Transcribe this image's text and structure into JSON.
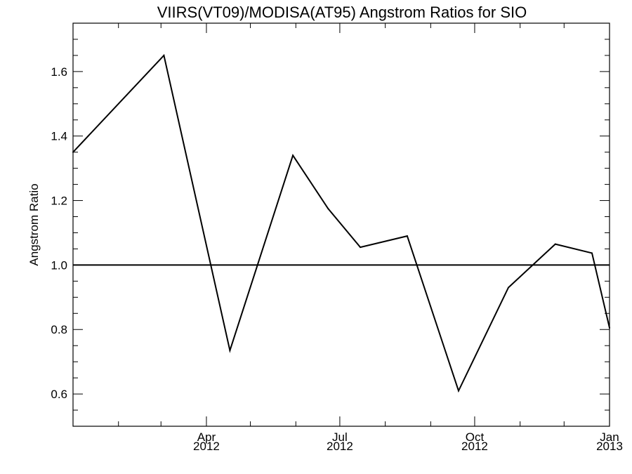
{
  "chart_data": {
    "type": "line",
    "title": "VIIRS(VT09)/MODISA(AT95)  Angstrom Ratios for SIO",
    "xlabel": "",
    "ylabel": "Angstrom Ratio",
    "ylim": [
      0.5,
      1.75
    ],
    "xlim": [
      "2012-01-01",
      "2013-01-01"
    ],
    "yticks": [
      {
        "value": 0.6,
        "label": "0.6"
      },
      {
        "value": 0.8,
        "label": "0.8"
      },
      {
        "value": 1.0,
        "label": "1.0"
      },
      {
        "value": 1.2,
        "label": "1.2"
      },
      {
        "value": 1.4,
        "label": "1.4"
      },
      {
        "value": 1.6,
        "label": "1.6"
      }
    ],
    "xticks": [
      {
        "date": "2012-04-01",
        "month": "Apr",
        "year": "2012"
      },
      {
        "date": "2012-07-01",
        "month": "Jul",
        "year": "2012"
      },
      {
        "date": "2012-10-01",
        "month": "Oct",
        "year": "2012"
      },
      {
        "date": "2013-01-01",
        "month": "Jan",
        "year": "2013"
      }
    ],
    "series": [
      {
        "points": [
          {
            "date": "2012-01-01",
            "value": 1.35
          },
          {
            "date": "2012-03-03",
            "value": 1.65
          },
          {
            "date": "2012-04-17",
            "value": 0.735
          },
          {
            "date": "2012-05-30",
            "value": 1.34
          },
          {
            "date": "2012-06-23",
            "value": 1.175
          },
          {
            "date": "2012-07-15",
            "value": 1.055
          },
          {
            "date": "2012-08-16",
            "value": 1.09
          },
          {
            "date": "2012-09-20",
            "value": 0.61
          },
          {
            "date": "2012-10-24",
            "value": 0.93
          },
          {
            "date": "2012-11-25",
            "value": 1.065
          },
          {
            "date": "2012-12-20",
            "value": 1.037
          },
          {
            "date": "2013-01-01",
            "value": 0.805
          }
        ]
      }
    ],
    "reference_line": {
      "value": 1.0
    },
    "minor_x_ticks": [
      "2012-02-01",
      "2012-03-01",
      "2012-05-01",
      "2012-06-01",
      "2012-08-01",
      "2012-09-01",
      "2012-11-01",
      "2012-12-01"
    ],
    "minor_y_step": 0.05,
    "grid": false,
    "legend": "none",
    "line_color": "#000000"
  }
}
